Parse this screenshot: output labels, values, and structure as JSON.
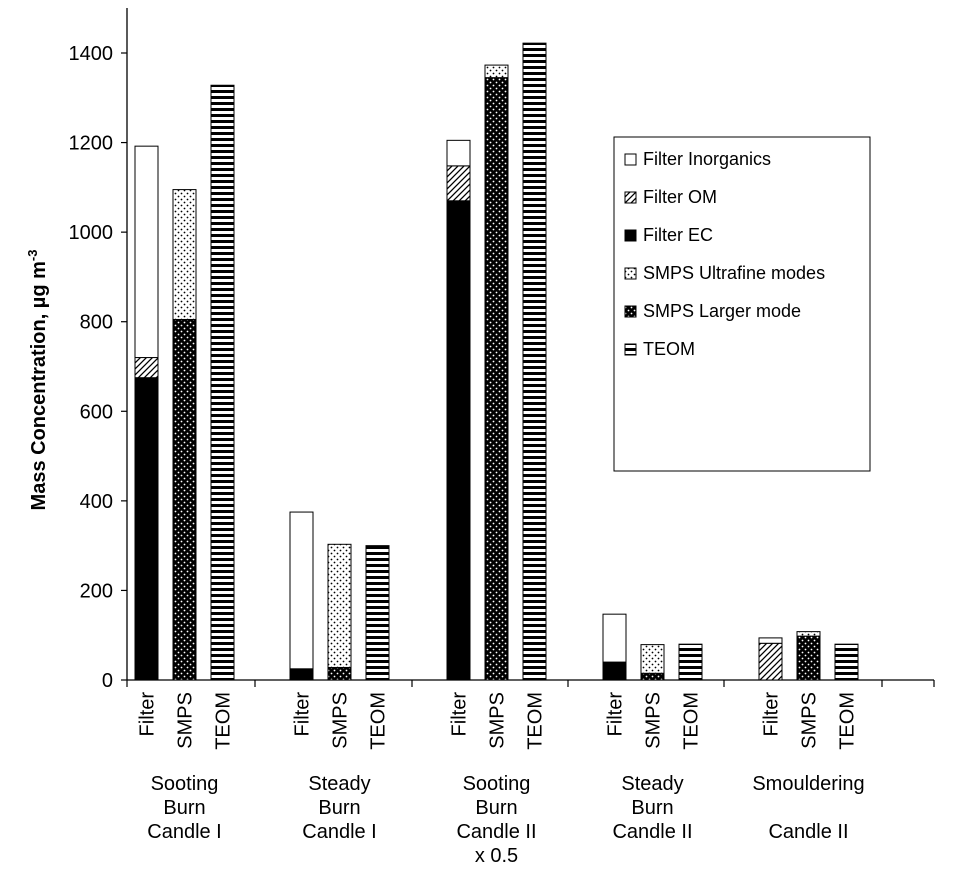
{
  "chart_data": {
    "type": "bar",
    "stacked": true,
    "ylabel": "Mass Concentration,  µg m",
    "ylabel_superscript": "-3",
    "ylim": [
      0,
      1500
    ],
    "yticks": [
      0,
      200,
      400,
      600,
      800,
      1000,
      1200,
      1400
    ],
    "grid": false,
    "legend_position": "right",
    "groups": [
      {
        "label_lines": [
          "Sooting",
          "Burn",
          "Candle I"
        ],
        "bars": [
          {
            "label": "Filter",
            "segments": [
              {
                "series": "Filter EC",
                "value": 675
              },
              {
                "series": "Filter OM",
                "value": 45
              },
              {
                "series": "Filter Inorganics",
                "value": 472
              }
            ]
          },
          {
            "label": "SMPS",
            "segments": [
              {
                "series": "SMPS Larger mode",
                "value": 805
              },
              {
                "series": "SMPS Ultrafine modes",
                "value": 290
              }
            ]
          },
          {
            "label": "TEOM",
            "segments": [
              {
                "series": "TEOM",
                "value": 1328
              }
            ]
          }
        ]
      },
      {
        "label_lines": [
          "Steady",
          "Burn",
          "Candle I"
        ],
        "bars": [
          {
            "label": "Filter",
            "segments": [
              {
                "series": "Filter EC",
                "value": 25
              },
              {
                "series": "Filter OM",
                "value": 0
              },
              {
                "series": "Filter Inorganics",
                "value": 350
              }
            ]
          },
          {
            "label": "SMPS",
            "segments": [
              {
                "series": "SMPS Larger mode",
                "value": 28
              },
              {
                "series": "SMPS Ultrafine modes",
                "value": 275
              }
            ]
          },
          {
            "label": "TEOM",
            "segments": [
              {
                "series": "TEOM",
                "value": 300
              }
            ]
          }
        ]
      },
      {
        "label_lines": [
          "Sooting",
          "Burn",
          "Candle II",
          "x 0.5"
        ],
        "bars": [
          {
            "label": "Filter",
            "segments": [
              {
                "series": "Filter EC",
                "value": 1070
              },
              {
                "series": "Filter OM",
                "value": 78
              },
              {
                "series": "Filter Inorganics",
                "value": 57
              }
            ]
          },
          {
            "label": "SMPS",
            "segments": [
              {
                "series": "SMPS Larger mode",
                "value": 1345
              },
              {
                "series": "SMPS Ultrafine modes",
                "value": 28
              }
            ]
          },
          {
            "label": "TEOM",
            "segments": [
              {
                "series": "TEOM",
                "value": 1422
              }
            ]
          }
        ]
      },
      {
        "label_lines": [
          "Steady",
          "Burn",
          "Candle II"
        ],
        "bars": [
          {
            "label": "Filter",
            "segments": [
              {
                "series": "Filter EC",
                "value": 40
              },
              {
                "series": "Filter OM",
                "value": 0
              },
              {
                "series": "Filter Inorganics",
                "value": 107
              }
            ]
          },
          {
            "label": "SMPS",
            "segments": [
              {
                "series": "SMPS Larger mode",
                "value": 15
              },
              {
                "series": "SMPS Ultrafine modes",
                "value": 64
              }
            ]
          },
          {
            "label": "TEOM",
            "segments": [
              {
                "series": "TEOM",
                "value": 80
              }
            ]
          }
        ]
      },
      {
        "label_lines": [
          "Smouldering",
          "",
          "Candle II"
        ],
        "bars": [
          {
            "label": "Filter",
            "segments": [
              {
                "series": "Filter EC",
                "value": 0
              },
              {
                "series": "Filter OM",
                "value": 82
              },
              {
                "series": "Filter Inorganics",
                "value": 12
              }
            ]
          },
          {
            "label": "SMPS",
            "segments": [
              {
                "series": "SMPS Larger mode",
                "value": 98
              },
              {
                "series": "SMPS Ultrafine modes",
                "value": 10
              }
            ]
          },
          {
            "label": "TEOM",
            "segments": [
              {
                "series": "TEOM",
                "value": 80
              }
            ]
          }
        ]
      }
    ],
    "legend": [
      {
        "series": "Filter Inorganics",
        "label": "Filter Inorganics",
        "pattern": "white"
      },
      {
        "series": "Filter OM",
        "label": "Filter OM",
        "pattern": "hatch"
      },
      {
        "series": "Filter EC",
        "label": "Filter EC",
        "pattern": "black"
      },
      {
        "series": "SMPS Ultrafine modes",
        "label": "SMPS Ultrafine modes",
        "pattern": "dots-light"
      },
      {
        "series": "SMPS Larger mode",
        "label": "SMPS Larger mode",
        "pattern": "dots-dark"
      },
      {
        "series": "TEOM",
        "label": "TEOM",
        "pattern": "hstripes"
      }
    ]
  }
}
